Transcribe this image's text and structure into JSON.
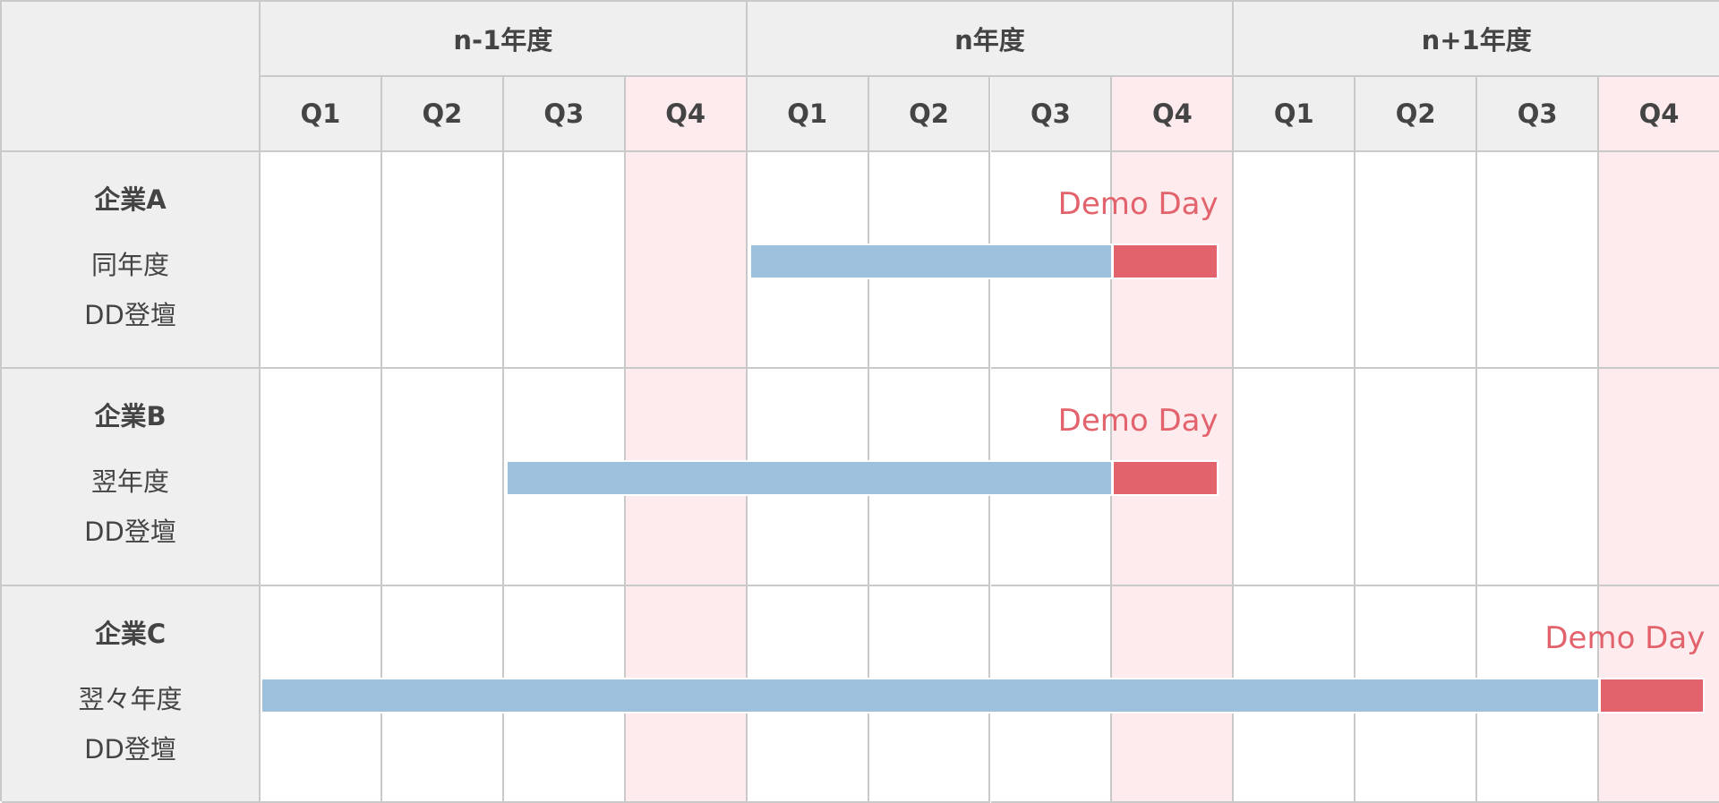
{
  "years": [
    "n-1年度",
    "n年度",
    "n+1年度"
  ],
  "quarters": [
    "Q1",
    "Q2",
    "Q3",
    "Q4"
  ],
  "highlight_quarter": "Q4",
  "demo_label": "Demo Day",
  "colors": {
    "header_bg": "#efefef",
    "q4_bg": "#fdebee",
    "bar_prep": "#9dc0dc",
    "bar_demo": "#e3636c",
    "grid": "#c9c9c9"
  },
  "companies": [
    {
      "name": "企業A",
      "line1": "同年度",
      "line2": "DD登壇",
      "bar_start": {
        "year": "n年度",
        "quarter": "Q1"
      },
      "demo_day": {
        "year": "n年度",
        "quarter": "Q4"
      }
    },
    {
      "name": "企業B",
      "line1": "翌年度",
      "line2": "DD登壇",
      "bar_start": {
        "year": "n-1年度",
        "quarter": "Q3"
      },
      "demo_day": {
        "year": "n年度",
        "quarter": "Q4"
      }
    },
    {
      "name": "企業C",
      "line1": "翌々年度",
      "line2": "DD登壇",
      "bar_start": {
        "year": "n-1年度",
        "quarter": "Q1"
      },
      "demo_day": {
        "year": "n+1年度",
        "quarter": "Q4"
      }
    }
  ]
}
